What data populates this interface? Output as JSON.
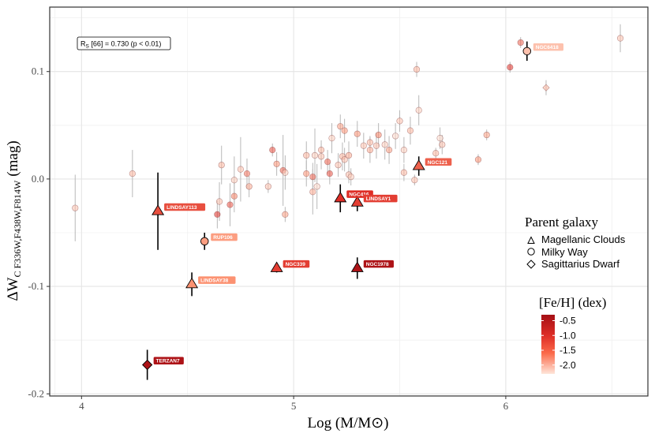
{
  "chart_data": {
    "type": "scatter",
    "title": "",
    "xlabel": "Log (M/M⊙)",
    "ylabel_main": "ΔW",
    "ylabel_sub": "C F336W,F438W,F814W",
    "ylabel_unit": "(mag)",
    "xlim": [
      3.85,
      6.67
    ],
    "ylim": [
      -0.202,
      0.16
    ],
    "xticks": [
      4,
      5,
      6
    ],
    "xtick_labels": [
      "4",
      "5",
      "6"
    ],
    "yticks": [
      -0.2,
      -0.1,
      0.0,
      0.1
    ],
    "ytick_labels": [
      "-0.2",
      "-0.1",
      "0.0",
      "0.1"
    ],
    "grid": true,
    "stat_annotation": {
      "prefix": "R",
      "sub": "S",
      "text": " [66] = 0.730 (p < 0.01)"
    },
    "legend_shape": {
      "title": "Parent galaxy",
      "entries": [
        {
          "shape": "triangle",
          "label": "Magellanic Clouds"
        },
        {
          "shape": "circle",
          "label": "Milky Way"
        },
        {
          "shape": "diamond",
          "label": "Sagittarius Dwarf"
        }
      ]
    },
    "legend_color": {
      "title": "[Fe/H] (dex)",
      "range": [
        -2.3,
        -0.3
      ],
      "ticks": [
        -0.5,
        -1.0,
        -1.5,
        -2.0
      ],
      "tick_labels": [
        "-0.5",
        "-1.0",
        "-1.5",
        "-2.0"
      ]
    },
    "highlighted": [
      {
        "label": "LINDSAY113",
        "shape": "triangle",
        "x": 4.36,
        "y": -0.03,
        "err": 0.036,
        "feh": -1.2
      },
      {
        "label": "RUP106",
        "shape": "circle",
        "x": 4.58,
        "y": -0.058,
        "err": 0.008,
        "feh": -1.7
      },
      {
        "label": "LINDSAY38",
        "shape": "triangle",
        "x": 4.52,
        "y": -0.098,
        "err": 0.011,
        "feh": -1.6
      },
      {
        "label": "TERZAN7",
        "shape": "diamond",
        "x": 4.31,
        "y": -0.173,
        "err": 0.014,
        "feh": -0.4
      },
      {
        "label": "NGC339",
        "shape": "triangle",
        "x": 4.92,
        "y": -0.083,
        "err": 0.004,
        "feh": -1.1
      },
      {
        "label": "NGC416",
        "shape": "triangle",
        "x": 5.22,
        "y": -0.018,
        "err": 0.013,
        "feh": -1.0
      },
      {
        "label": "LINDSAY1",
        "shape": "triangle",
        "x": 5.3,
        "y": -0.022,
        "err": 0.008,
        "feh": -1.1
      },
      {
        "label": "NGC121",
        "shape": "triangle",
        "x": 5.59,
        "y": 0.012,
        "err": 0.009,
        "feh": -1.3
      },
      {
        "label": "NGC1978",
        "shape": "triangle",
        "x": 5.3,
        "y": -0.083,
        "err": 0.01,
        "feh": -0.4
      },
      {
        "label": "NGC6418",
        "shape": "circle",
        "x": 6.1,
        "y": 0.119,
        "err": 0.009,
        "feh": -2.0
      }
    ],
    "points": [
      {
        "shape": "circle",
        "x": 3.97,
        "y": -0.027,
        "err": 0.031,
        "feh": -2.0
      },
      {
        "shape": "circle",
        "x": 4.24,
        "y": 0.005,
        "err": 0.022,
        "feh": -1.9
      },
      {
        "shape": "circle",
        "x": 4.64,
        "y": -0.033,
        "err": 0.013,
        "feh": -1.0
      },
      {
        "shape": "circle",
        "x": 4.65,
        "y": -0.021,
        "err": 0.018,
        "feh": -2.0
      },
      {
        "shape": "circle",
        "x": 4.66,
        "y": 0.013,
        "err": 0.018,
        "feh": -1.9
      },
      {
        "shape": "circle",
        "x": 4.7,
        "y": -0.024,
        "err": 0.02,
        "feh": -1.2
      },
      {
        "shape": "circle",
        "x": 4.72,
        "y": -0.001,
        "err": 0.022,
        "feh": -2.1
      },
      {
        "shape": "circle",
        "x": 4.72,
        "y": -0.016,
        "err": 0.015,
        "feh": -1.5
      },
      {
        "shape": "circle",
        "x": 4.75,
        "y": 0.009,
        "err": 0.03,
        "feh": -2.0
      },
      {
        "shape": "circle",
        "x": 4.78,
        "y": 0.005,
        "err": 0.014,
        "feh": -1.4
      },
      {
        "shape": "circle",
        "x": 4.79,
        "y": -0.007,
        "err": 0.01,
        "feh": -1.8
      },
      {
        "shape": "circle",
        "x": 4.88,
        "y": -0.007,
        "err": 0.006,
        "feh": -2.0
      },
      {
        "shape": "circle",
        "x": 4.9,
        "y": 0.027,
        "err": 0.006,
        "feh": -1.2
      },
      {
        "shape": "circle",
        "x": 4.92,
        "y": 0.014,
        "err": 0.011,
        "feh": -1.6
      },
      {
        "shape": "circle",
        "x": 4.95,
        "y": 0.008,
        "err": 0.033,
        "feh": -1.3
      },
      {
        "shape": "circle",
        "x": 4.96,
        "y": 0.006,
        "err": 0.016,
        "feh": -2.1
      },
      {
        "shape": "circle",
        "x": 4.96,
        "y": -0.033,
        "err": 0.007,
        "feh": -1.7
      },
      {
        "shape": "circle",
        "x": 5.06,
        "y": 0.005,
        "err": 0.012,
        "feh": -1.6
      },
      {
        "shape": "circle",
        "x": 5.06,
        "y": 0.022,
        "err": 0.013,
        "feh": -1.9
      },
      {
        "shape": "circle",
        "x": 5.09,
        "y": 0.002,
        "err": 0.013,
        "feh": -1.3
      },
      {
        "shape": "circle",
        "x": 5.09,
        "y": -0.012,
        "err": 0.021,
        "feh": -1.8
      },
      {
        "shape": "circle",
        "x": 5.1,
        "y": 0.022,
        "err": 0.025,
        "feh": -2.1
      },
      {
        "shape": "circle",
        "x": 5.11,
        "y": -0.007,
        "err": 0.021,
        "feh": -2.2
      },
      {
        "shape": "circle",
        "x": 5.13,
        "y": 0.021,
        "err": 0.012,
        "feh": -2.0
      },
      {
        "shape": "circle",
        "x": 5.13,
        "y": 0.027,
        "err": 0.009,
        "feh": -1.9
      },
      {
        "shape": "circle",
        "x": 5.16,
        "y": 0.016,
        "err": 0.011,
        "feh": -1.3
      },
      {
        "shape": "circle",
        "x": 5.17,
        "y": 0.005,
        "err": 0.01,
        "feh": -1.2
      },
      {
        "shape": "circle",
        "x": 5.18,
        "y": 0.038,
        "err": 0.014,
        "feh": -2.1
      },
      {
        "shape": "circle",
        "x": 5.21,
        "y": 0.013,
        "err": 0.011,
        "feh": -2.0
      },
      {
        "shape": "circle",
        "x": 5.22,
        "y": 0.049,
        "err": 0.011,
        "feh": -1.7
      },
      {
        "shape": "circle",
        "x": 5.23,
        "y": 0.021,
        "err": 0.013,
        "feh": -1.9
      },
      {
        "shape": "circle",
        "x": 5.24,
        "y": 0.045,
        "err": 0.011,
        "feh": -1.6
      },
      {
        "shape": "circle",
        "x": 5.24,
        "y": 0.018,
        "err": 0.011,
        "feh": -2.0
      },
      {
        "shape": "circle",
        "x": 5.26,
        "y": 0.004,
        "err": 0.008,
        "feh": -2.0
      },
      {
        "shape": "circle",
        "x": 5.26,
        "y": 0.022,
        "err": 0.013,
        "feh": -1.8
      },
      {
        "shape": "circle",
        "x": 5.27,
        "y": 0.002,
        "err": 0.008,
        "feh": -2.1
      },
      {
        "shape": "circle",
        "x": 5.3,
        "y": 0.042,
        "err": 0.012,
        "feh": -1.6
      },
      {
        "shape": "circle",
        "x": 5.33,
        "y": 0.031,
        "err": 0.012,
        "feh": -2.0
      },
      {
        "shape": "circle",
        "x": 5.36,
        "y": 0.027,
        "err": 0.012,
        "feh": -1.8
      },
      {
        "shape": "circle",
        "x": 5.36,
        "y": 0.034,
        "err": 0.006,
        "feh": -1.9
      },
      {
        "shape": "circle",
        "x": 5.39,
        "y": 0.031,
        "err": 0.012,
        "feh": -2.0
      },
      {
        "shape": "circle",
        "x": 5.4,
        "y": 0.041,
        "err": 0.011,
        "feh": -1.5
      },
      {
        "shape": "circle",
        "x": 5.43,
        "y": 0.032,
        "err": 0.014,
        "feh": -2.1
      },
      {
        "shape": "circle",
        "x": 5.45,
        "y": 0.027,
        "err": 0.013,
        "feh": -1.7
      },
      {
        "shape": "circle",
        "x": 5.48,
        "y": 0.04,
        "err": 0.012,
        "feh": -2.2
      },
      {
        "shape": "circle",
        "x": 5.5,
        "y": 0.054,
        "err": 0.01,
        "feh": -2.0
      },
      {
        "shape": "circle",
        "x": 5.52,
        "y": 0.027,
        "err": 0.012,
        "feh": -2.1
      },
      {
        "shape": "circle",
        "x": 5.52,
        "y": 0.006,
        "err": 0.008,
        "feh": -1.9
      },
      {
        "shape": "circle",
        "x": 5.55,
        "y": 0.045,
        "err": 0.013,
        "feh": -1.9
      },
      {
        "shape": "circle",
        "x": 5.57,
        "y": -0.001,
        "err": 0.005,
        "feh": -2.0
      },
      {
        "shape": "circle",
        "x": 5.58,
        "y": 0.102,
        "err": 0.007,
        "feh": -1.9
      },
      {
        "shape": "circle",
        "x": 5.59,
        "y": 0.064,
        "err": 0.014,
        "feh": -2.1
      },
      {
        "shape": "circle",
        "x": 5.67,
        "y": 0.024,
        "err": 0.005,
        "feh": -1.9
      },
      {
        "shape": "circle",
        "x": 5.69,
        "y": 0.038,
        "err": 0.01,
        "feh": -2.2
      },
      {
        "shape": "circle",
        "x": 5.7,
        "y": 0.032,
        "err": 0.009,
        "feh": -2.0
      },
      {
        "shape": "circle",
        "x": 5.87,
        "y": 0.018,
        "err": 0.005,
        "feh": -1.6
      },
      {
        "shape": "circle",
        "x": 5.91,
        "y": 0.041,
        "err": 0.005,
        "feh": -1.7
      },
      {
        "shape": "circle",
        "x": 6.02,
        "y": 0.104,
        "err": 0.005,
        "feh": -1.0
      },
      {
        "shape": "circle",
        "x": 6.07,
        "y": 0.127,
        "err": 0.005,
        "feh": -1.3
      },
      {
        "shape": "diamond",
        "x": 6.19,
        "y": 0.085,
        "err": 0.007,
        "feh": -1.9
      },
      {
        "shape": "circle",
        "x": 6.54,
        "y": 0.131,
        "err": 0.013,
        "feh": -2.0
      }
    ]
  }
}
